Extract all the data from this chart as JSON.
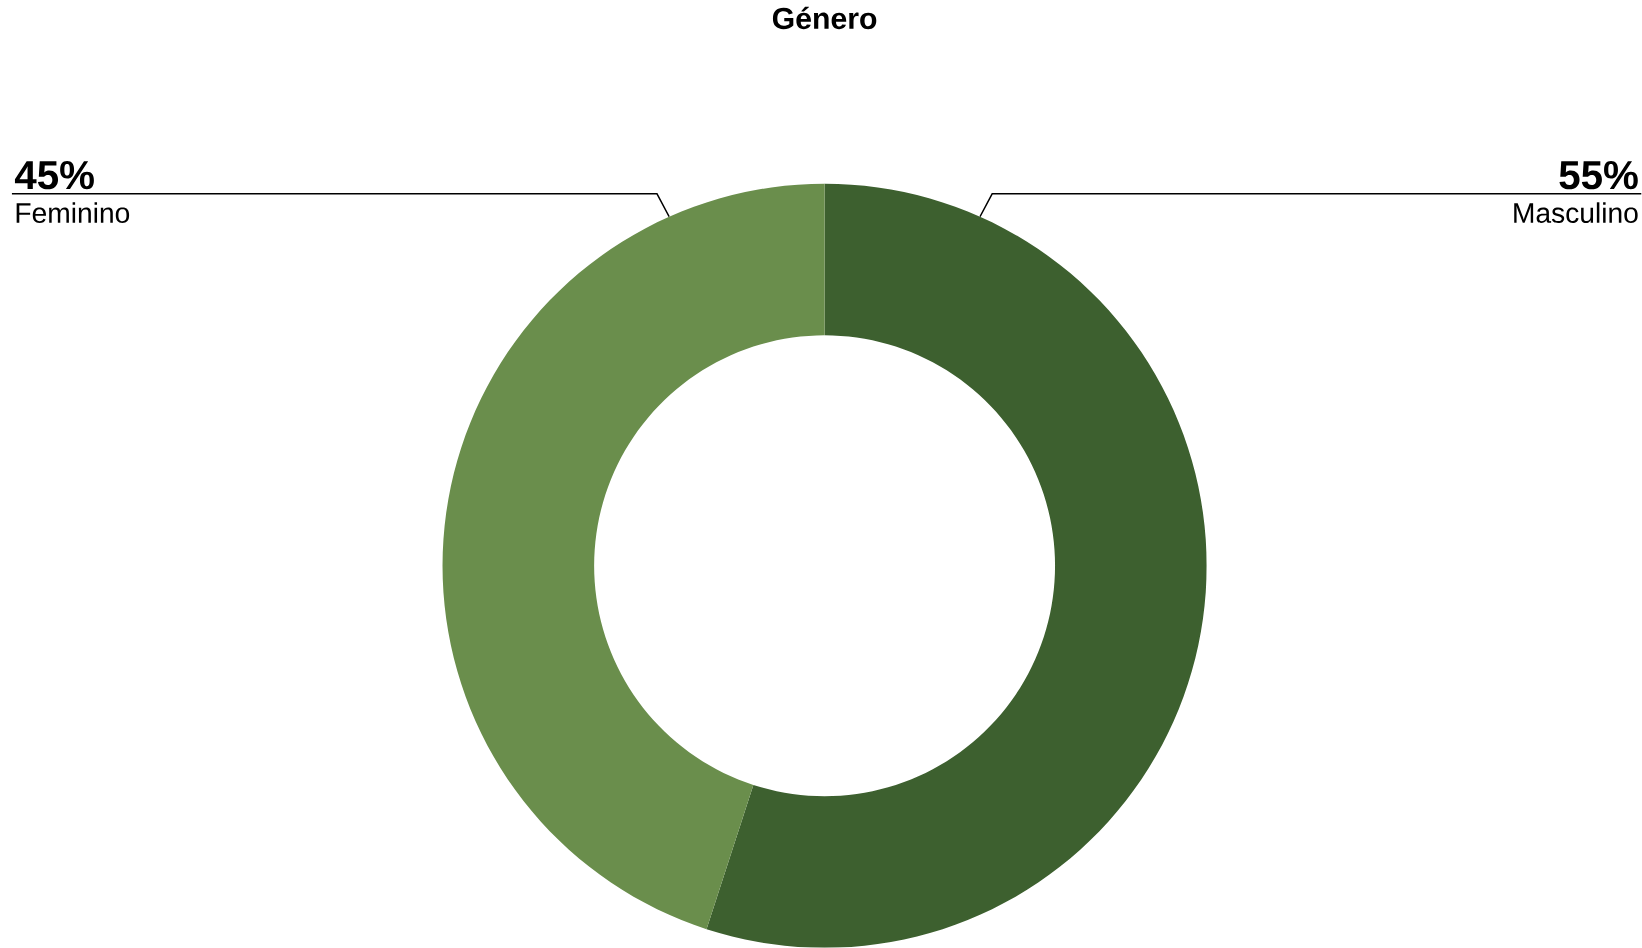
{
  "chart_data": {
    "type": "donut",
    "title": "Género",
    "categories": [
      "Masculino",
      "Feminino"
    ],
    "values": [
      55,
      45
    ],
    "colors": [
      "#3d602f",
      "#6a8e4c"
    ],
    "value_labels": [
      "55%",
      "45%"
    ]
  }
}
